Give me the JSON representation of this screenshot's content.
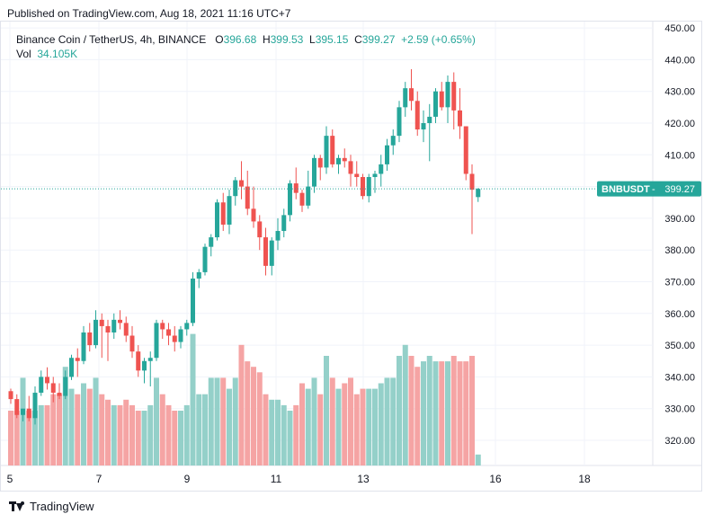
{
  "published": "Published on TradingView.com, Aug 18, 2021 11:16 UTC+7",
  "legend": {
    "title": "Binance Coin / TetherUS, 4h, BINANCE",
    "o_label": "O",
    "o_value": "396.68",
    "h_label": "H",
    "h_value": "399.53",
    "l_label": "L",
    "l_value": "395.15",
    "c_label": "C",
    "c_value": "399.27",
    "change": "+2.59 (+0.65%)",
    "vol_label": "Vol",
    "vol_value": "34.105K"
  },
  "price_tag": {
    "symbol": "BNBUSDT",
    "value": "399.27"
  },
  "footer": {
    "brand": "TradingView"
  },
  "colors": {
    "up": "#26a69a",
    "down": "#ef5350",
    "vol_up": "#94d0c9",
    "vol_down": "#f5a4a4",
    "grid": "#f0f3fa",
    "dotted": "#26a69a"
  },
  "chart_data": {
    "type": "candlestick",
    "timeframe": "4h",
    "y_ticks": [
      "450.00",
      "440.00",
      "430.00",
      "420.00",
      "410.00",
      "400.00",
      "390.00",
      "380.00",
      "370.00",
      "360.00",
      "350.00",
      "340.00",
      "330.00",
      "320.00"
    ],
    "ylim": [
      313,
      451
    ],
    "x_ticks": [
      "5",
      "7",
      "9",
      "11",
      "13",
      "16",
      "18"
    ],
    "last_price": 399.27,
    "candles": [
      [
        335.5,
        336.3,
        331.5,
        333
      ],
      [
        333,
        334.5,
        327,
        328
      ],
      [
        328,
        330,
        326,
        330
      ],
      [
        330,
        334,
        326,
        327
      ],
      [
        327,
        337,
        325,
        335
      ],
      [
        335,
        342,
        334,
        340
      ],
      [
        340,
        343,
        336,
        338
      ],
      [
        338,
        340,
        332,
        335
      ],
      [
        335,
        338,
        333,
        334
      ],
      [
        334,
        342,
        333,
        340
      ],
      [
        340,
        347,
        339,
        346
      ],
      [
        346,
        349,
        340,
        345
      ],
      [
        345,
        356,
        344,
        354
      ],
      [
        354,
        357,
        348,
        350
      ],
      [
        350,
        361,
        349,
        358
      ],
      [
        358,
        360,
        346,
        356
      ],
      [
        356,
        358,
        345,
        354
      ],
      [
        354,
        360,
        352,
        358
      ],
      [
        358,
        361,
        355,
        357
      ],
      [
        357,
        359,
        351,
        353
      ],
      [
        353,
        356,
        346,
        348
      ],
      [
        348,
        350,
        340,
        342
      ],
      [
        342,
        346,
        338,
        345
      ],
      [
        345,
        348,
        337,
        346
      ],
      [
        346,
        358,
        345,
        357
      ],
      [
        357,
        358,
        352,
        355
      ],
      [
        355,
        357,
        350,
        353
      ],
      [
        353,
        356,
        348,
        351
      ],
      [
        351,
        356,
        349,
        355
      ],
      [
        355,
        358,
        353,
        357
      ],
      [
        357,
        373,
        356,
        371
      ],
      [
        371,
        374,
        368,
        373
      ],
      [
        373,
        382,
        372,
        381
      ],
      [
        381,
        385,
        378,
        384
      ],
      [
        384,
        396,
        383,
        395
      ],
      [
        395,
        398,
        386,
        388
      ],
      [
        388,
        399,
        385,
        397
      ],
      [
        397,
        403,
        394,
        402
      ],
      [
        402,
        408,
        396,
        400
      ],
      [
        400,
        405,
        391,
        393
      ],
      [
        393,
        400,
        387,
        389
      ],
      [
        389,
        391,
        380,
        384
      ],
      [
        384,
        387,
        372,
        375
      ],
      [
        375,
        384,
        372,
        383
      ],
      [
        383,
        390,
        380,
        386
      ],
      [
        386,
        393,
        384,
        391
      ],
      [
        391,
        402,
        389,
        401
      ],
      [
        401,
        406,
        396,
        398
      ],
      [
        398,
        399,
        392,
        394
      ],
      [
        394,
        405,
        393,
        400
      ],
      [
        400,
        410,
        398,
        409
      ],
      [
        409,
        410,
        402,
        406
      ],
      [
        406,
        419,
        404,
        416
      ],
      [
        416,
        418,
        406,
        407
      ],
      [
        407,
        410,
        404,
        409
      ],
      [
        409,
        412,
        406,
        408
      ],
      [
        408,
        410,
        400,
        404
      ],
      [
        404,
        408,
        400,
        403
      ],
      [
        403,
        404,
        396,
        397
      ],
      [
        397,
        404,
        395,
        403
      ],
      [
        403,
        405,
        398,
        404
      ],
      [
        404,
        410,
        400,
        407
      ],
      [
        407,
        415,
        405,
        413
      ],
      [
        413,
        418,
        410,
        416
      ],
      [
        416,
        427,
        414,
        425
      ],
      [
        425,
        433,
        422,
        431
      ],
      [
        431,
        437,
        424,
        427
      ],
      [
        427,
        430,
        416,
        418
      ],
      [
        418,
        424,
        414,
        420
      ],
      [
        420,
        426,
        408,
        422
      ],
      [
        422,
        431,
        420,
        430
      ],
      [
        430,
        433,
        424,
        425
      ],
      [
        425,
        435,
        420,
        433
      ],
      [
        433,
        436,
        418,
        424
      ],
      [
        424,
        431,
        415,
        419
      ],
      [
        419,
        419,
        402,
        404
      ],
      [
        404,
        407,
        385,
        399
      ],
      [
        396.68,
        399.53,
        395.15,
        399.27
      ]
    ],
    "volume": [
      10,
      10,
      16,
      10,
      10,
      11,
      11,
      13,
      13,
      18,
      14,
      13,
      15,
      14,
      16,
      13,
      12,
      11,
      11,
      12,
      11,
      10,
      10,
      11,
      16,
      13,
      11,
      10,
      10,
      11,
      24,
      13,
      13,
      16,
      16,
      16,
      14,
      16,
      22,
      19,
      18,
      17,
      13,
      12,
      12,
      11,
      10,
      11,
      15,
      14,
      16,
      13,
      20,
      16,
      14,
      15,
      16,
      13,
      14,
      14,
      14,
      15,
      16,
      16,
      20,
      22,
      20,
      18,
      19,
      20,
      19,
      19,
      19,
      20,
      19,
      19,
      20,
      2
    ]
  }
}
